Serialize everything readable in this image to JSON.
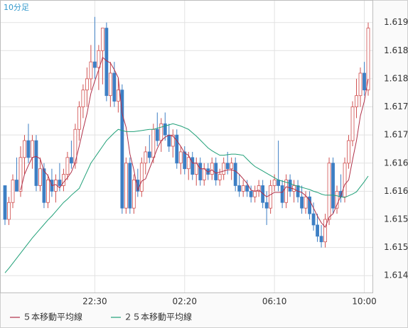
{
  "chart_data": {
    "type": "candlestick",
    "timeframe_label": "10分足",
    "categories": [
      null,
      null,
      null,
      null,
      null,
      null,
      null,
      null,
      null,
      null,
      null,
      null,
      null,
      null,
      null,
      null,
      null,
      null,
      null,
      null,
      null,
      null,
      null,
      "22:30",
      null,
      null,
      null,
      null,
      null,
      null,
      null,
      null,
      null,
      null,
      null,
      null,
      null,
      null,
      null,
      null,
      null,
      null,
      null,
      null,
      null,
      null,
      "02:20",
      null,
      null,
      null,
      null,
      null,
      null,
      null,
      null,
      null,
      null,
      null,
      null,
      null,
      null,
      null,
      null,
      null,
      null,
      null,
      null,
      null,
      null,
      "06:10",
      null,
      null,
      null,
      null,
      null,
      null,
      null,
      null,
      null,
      null,
      null,
      null,
      null,
      null,
      null,
      null,
      null,
      null,
      null,
      null,
      null,
      null,
      "10:00",
      null
    ],
    "open": [
      1.6161,
      1.6155,
      1.6158,
      1.6162,
      1.616,
      1.6166,
      1.6169,
      1.6166,
      1.6169,
      1.6161,
      1.6164,
      1.6158,
      1.6162,
      1.616,
      1.6162,
      1.6161,
      1.6163,
      1.6166,
      1.6165,
      1.6171,
      1.6175,
      1.6178,
      1.618,
      1.6183,
      1.6182,
      1.6185,
      1.6189,
      1.6177,
      1.6181,
      1.6176,
      1.6178,
      1.6157,
      1.6165,
      1.6157,
      1.6162,
      1.616,
      1.6165,
      1.6167,
      1.6166,
      1.6171,
      1.6169,
      1.6172,
      1.617,
      1.6168,
      1.617,
      1.6165,
      1.6167,
      1.6164,
      1.6166,
      1.6163,
      1.6165,
      1.6162,
      1.6164,
      1.6163,
      1.6165,
      1.6162,
      1.6163,
      1.6165,
      1.6164,
      1.6165,
      1.6161,
      1.616,
      1.6161,
      1.616,
      1.6159,
      1.616,
      1.6161,
      1.6158,
      1.6157,
      1.6161,
      1.6162,
      1.6161,
      1.6158,
      1.6162,
      1.616,
      1.6161,
      1.6159,
      1.6157,
      1.6159,
      1.6156,
      1.6154,
      1.6152,
      1.6151,
      1.6155,
      1.6165,
      1.6157,
      1.616,
      1.6159,
      1.6165,
      1.6169,
      1.6175,
      1.6177,
      1.6181,
      1.6178
    ],
    "high": [
      1.6161,
      1.6159,
      1.6163,
      1.6166,
      1.6168,
      1.617,
      1.6172,
      1.617,
      1.617,
      1.6166,
      1.6165,
      1.6163,
      1.6164,
      1.6163,
      1.6165,
      1.6164,
      1.6167,
      1.6169,
      1.6172,
      1.6176,
      1.6179,
      1.6182,
      1.6186,
      1.6191,
      1.6186,
      1.6189,
      1.619,
      1.6183,
      1.6183,
      1.618,
      1.6179,
      1.6166,
      1.6166,
      1.6163,
      1.6164,
      1.6166,
      1.6168,
      1.617,
      1.6172,
      1.6174,
      1.6173,
      1.6174,
      1.6172,
      1.6171,
      1.6171,
      1.6168,
      1.6168,
      1.6167,
      1.6167,
      1.6166,
      1.6166,
      1.6165,
      1.6165,
      1.6166,
      1.6166,
      1.6164,
      1.6166,
      1.6167,
      1.6166,
      1.6166,
      1.6163,
      1.6162,
      1.6162,
      1.6161,
      1.6161,
      1.6162,
      1.6162,
      1.616,
      1.6162,
      1.6163,
      1.6169,
      1.6162,
      1.6163,
      1.6163,
      1.6162,
      1.6162,
      1.6161,
      1.616,
      1.616,
      1.6158,
      1.6156,
      1.6154,
      1.6156,
      1.6166,
      1.6166,
      1.6161,
      1.6163,
      1.6166,
      1.617,
      1.6176,
      1.618,
      1.6182,
      1.6183,
      1.619
    ],
    "low": [
      1.6154,
      1.6154,
      1.6157,
      1.616,
      1.6159,
      1.6163,
      1.6165,
      1.6164,
      1.616,
      1.616,
      1.6157,
      1.6157,
      1.6159,
      1.6158,
      1.616,
      1.616,
      1.6162,
      1.6164,
      1.6164,
      1.6169,
      1.6173,
      1.6175,
      1.6178,
      1.618,
      1.6178,
      1.6179,
      1.6176,
      1.6175,
      1.6175,
      1.6174,
      1.6156,
      1.6156,
      1.6156,
      1.6156,
      1.6159,
      1.6159,
      1.6163,
      1.6165,
      1.6165,
      1.6168,
      1.6167,
      1.6169,
      1.6167,
      1.6166,
      1.6164,
      1.6163,
      1.6163,
      1.6162,
      1.6162,
      1.6161,
      1.6161,
      1.6161,
      1.6162,
      1.6162,
      1.6161,
      1.6161,
      1.6162,
      1.6163,
      1.6162,
      1.616,
      1.6159,
      1.6159,
      1.6159,
      1.6158,
      1.6158,
      1.6159,
      1.6157,
      1.6154,
      1.6156,
      1.616,
      1.616,
      1.6157,
      1.6157,
      1.6159,
      1.6158,
      1.6158,
      1.6156,
      1.6156,
      1.6155,
      1.6153,
      1.6151,
      1.615,
      1.615,
      1.6154,
      1.6156,
      1.6156,
      1.6158,
      1.6158,
      1.6164,
      1.6168,
      1.6173,
      1.6175,
      1.6177,
      1.6177
    ],
    "close": [
      1.6155,
      1.6158,
      1.6162,
      1.616,
      1.6166,
      1.6169,
      1.6166,
      1.6169,
      1.6161,
      1.6164,
      1.6158,
      1.6162,
      1.616,
      1.6162,
      1.6161,
      1.6163,
      1.6166,
      1.6165,
      1.6171,
      1.6175,
      1.6178,
      1.618,
      1.6183,
      1.6182,
      1.6185,
      1.6189,
      1.6177,
      1.6181,
      1.6176,
      1.6178,
      1.6157,
      1.6165,
      1.6157,
      1.6162,
      1.616,
      1.6165,
      1.6167,
      1.6166,
      1.6171,
      1.6169,
      1.6172,
      1.617,
      1.6168,
      1.617,
      1.6165,
      1.6167,
      1.6164,
      1.6166,
      1.6163,
      1.6165,
      1.6162,
      1.6164,
      1.6163,
      1.6165,
      1.6162,
      1.6163,
      1.6165,
      1.6164,
      1.6165,
      1.6161,
      1.616,
      1.6161,
      1.616,
      1.6159,
      1.616,
      1.6161,
      1.6158,
      1.6157,
      1.6161,
      1.6162,
      1.6161,
      1.6158,
      1.6162,
      1.616,
      1.6161,
      1.6159,
      1.6157,
      1.6159,
      1.6156,
      1.6154,
      1.6152,
      1.6151,
      1.6155,
      1.6165,
      1.6157,
      1.616,
      1.6159,
      1.6165,
      1.6169,
      1.6175,
      1.6177,
      1.6181,
      1.6178,
      1.6189
    ],
    "up_color": "#d05050",
    "down_color": "#3d7fc4",
    "series": [
      {
        "name": "５本移動平均線",
        "color": "#b03048",
        "values": [
          null,
          null,
          null,
          null,
          1.61602,
          1.6163,
          1.61646,
          1.6166,
          1.61662,
          1.61658,
          1.61636,
          1.61628,
          1.6161,
          1.61612,
          1.61606,
          1.61616,
          1.61624,
          1.61634,
          1.61652,
          1.6168,
          1.6171,
          1.61738,
          1.61774,
          1.61796,
          1.61816,
          1.61838,
          1.61832,
          1.61828,
          1.61816,
          1.61802,
          1.61738,
          1.61714,
          1.61666,
          1.61638,
          1.61602,
          1.61618,
          1.61622,
          1.6164,
          1.61658,
          1.61676,
          1.6169,
          1.61696,
          1.617,
          1.61698,
          1.6169,
          1.6168,
          1.61668,
          1.61664,
          1.6165,
          1.6165,
          1.6164,
          1.6164,
          1.61634,
          1.61638,
          1.61632,
          1.61634,
          1.61636,
          1.61638,
          1.61638,
          1.61636,
          1.6163,
          1.61622,
          1.61614,
          1.61602,
          1.616,
          1.61602,
          1.61596,
          1.6159,
          1.61594,
          1.61598,
          1.61598,
          1.61598,
          1.61608,
          1.61606,
          1.61604,
          1.616,
          1.61598,
          1.61592,
          1.61584,
          1.6157,
          1.61556,
          1.61544,
          1.61536,
          1.61554,
          1.6156,
          1.61576,
          1.61592,
          1.61612,
          1.6162,
          1.61656,
          1.6169,
          1.61734,
          1.6176,
          1.618
        ]
      },
      {
        "name": "２５本移動平均線",
        "color": "#20a078",
        "values": [
          1.61455,
          1.61463,
          1.61472,
          1.61481,
          1.6149,
          1.61499,
          1.61508,
          1.61517,
          1.61525,
          1.61533,
          1.61541,
          1.61549,
          1.61556,
          1.61564,
          1.61572,
          1.6158,
          1.61586,
          1.61593,
          1.61599,
          1.61605,
          1.6162,
          1.61635,
          1.6165,
          1.6166,
          1.6167,
          1.6168,
          1.6169,
          1.61697,
          1.61704,
          1.6171,
          1.61708,
          1.61706,
          1.61706,
          1.61706,
          1.61707,
          1.61708,
          1.61709,
          1.6171,
          1.6171,
          1.61712,
          1.61714,
          1.61716,
          1.61718,
          1.6172,
          1.61718,
          1.61716,
          1.61713,
          1.6171,
          1.61704,
          1.61698,
          1.61691,
          1.61684,
          1.61677,
          1.61672,
          1.61668,
          1.61664,
          1.61664,
          1.61665,
          1.61666,
          1.61666,
          1.61665,
          1.61664,
          1.61657,
          1.6165,
          1.61644,
          1.6164,
          1.61636,
          1.61632,
          1.61628,
          1.61624,
          1.6162,
          1.61618,
          1.61616,
          1.61614,
          1.61611,
          1.61609,
          1.61607,
          1.61605,
          1.61603,
          1.616,
          1.61598,
          1.61595,
          1.61593,
          1.61593,
          1.61593,
          1.61592,
          1.6159,
          1.61589,
          1.61592,
          1.61595,
          1.61599,
          1.61608,
          1.61617,
          1.61627
        ]
      }
    ],
    "ylim": [
      1.6142,
      1.6194
    ],
    "yticks": [
      1.6145,
      {
        "value": 1.615,
        "label": "1.6150"
      },
      1.6155,
      {
        "value": 1.616,
        "label": "1.6160"
      },
      1.6165,
      {
        "value": 1.617,
        "label": "1.6170"
      },
      1.6175,
      {
        "value": 1.618,
        "label": "1.6180"
      },
      1.6185,
      {
        "value": 1.619,
        "label": "1.6190"
      }
    ],
    "grid": true
  }
}
